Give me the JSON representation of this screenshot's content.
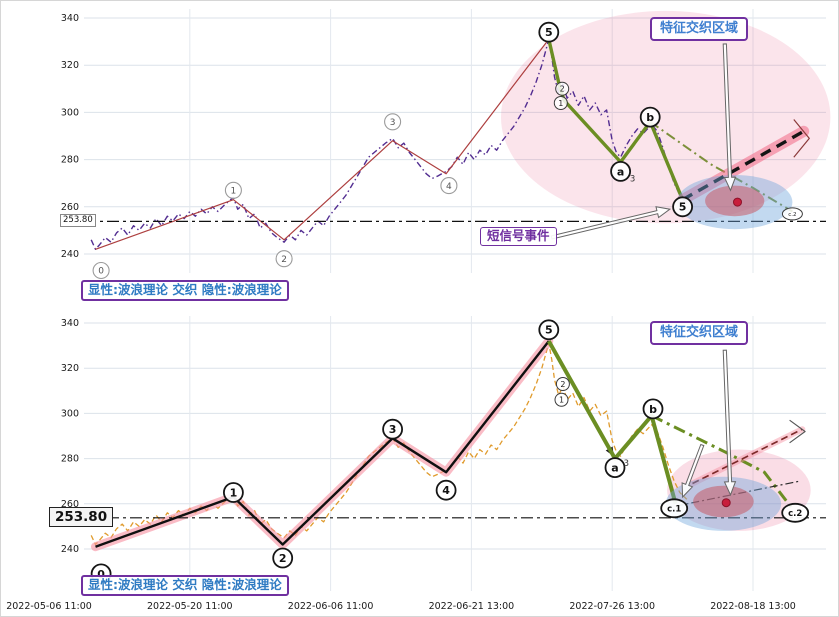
{
  "chart_data": {
    "type": "line",
    "title": "",
    "x_tick_labels": [
      "2022-05-06 11:00",
      "2022-05-20 11:00",
      "2022-06-06 11:00",
      "2022-06-21 13:00",
      "2022-07-26 13:00",
      "2022-08-18 13:00"
    ],
    "y_range": [
      240,
      340
    ],
    "grid": true,
    "shared": {
      "price": [
        [
          0.3,
          246
        ],
        [
          0.33,
          242
        ],
        [
          0.36,
          244
        ],
        [
          0.4,
          247
        ],
        [
          0.44,
          245
        ],
        [
          0.48,
          249
        ],
        [
          0.52,
          251
        ],
        [
          0.56,
          248
        ],
        [
          0.6,
          252
        ],
        [
          0.64,
          250
        ],
        [
          0.68,
          253
        ],
        [
          0.72,
          251
        ],
        [
          0.76,
          255
        ],
        [
          0.8,
          252
        ],
        [
          0.84,
          256
        ],
        [
          0.88,
          254
        ],
        [
          0.92,
          257
        ],
        [
          0.96,
          255
        ],
        [
          1.0,
          258
        ],
        [
          1.04,
          256
        ],
        [
          1.08,
          259
        ],
        [
          1.12,
          257
        ],
        [
          1.16,
          260
        ],
        [
          1.2,
          258
        ],
        [
          1.25,
          261
        ],
        [
          1.31,
          264
        ],
        [
          1.34,
          259
        ],
        [
          1.38,
          261
        ],
        [
          1.42,
          255
        ],
        [
          1.46,
          257
        ],
        [
          1.5,
          251
        ],
        [
          1.54,
          253
        ],
        [
          1.58,
          249
        ],
        [
          1.62,
          247
        ],
        [
          1.67,
          245
        ],
        [
          1.71,
          248
        ],
        [
          1.75,
          246
        ],
        [
          1.79,
          250
        ],
        [
          1.83,
          248
        ],
        [
          1.87,
          251
        ],
        [
          1.91,
          254
        ],
        [
          1.95,
          252
        ],
        [
          1.99,
          256
        ],
        [
          2.03,
          259
        ],
        [
          2.07,
          262
        ],
        [
          2.11,
          265
        ],
        [
          2.15,
          269
        ],
        [
          2.19,
          273
        ],
        [
          2.23,
          277
        ],
        [
          2.27,
          281
        ],
        [
          2.31,
          283
        ],
        [
          2.35,
          285
        ],
        [
          2.39,
          287
        ],
        [
          2.44,
          289
        ],
        [
          2.48,
          285
        ],
        [
          2.52,
          287
        ],
        [
          2.56,
          283
        ],
        [
          2.6,
          280
        ],
        [
          2.64,
          277
        ],
        [
          2.68,
          274
        ],
        [
          2.72,
          272
        ],
        [
          2.76,
          273
        ],
        [
          2.82,
          275
        ],
        [
          2.86,
          277
        ],
        [
          2.9,
          281
        ],
        [
          2.94,
          278
        ],
        [
          2.98,
          283
        ],
        [
          3.02,
          280
        ],
        [
          3.06,
          284
        ],
        [
          3.1,
          282
        ],
        [
          3.14,
          286
        ],
        [
          3.18,
          284
        ],
        [
          3.22,
          288
        ],
        [
          3.26,
          291
        ],
        [
          3.3,
          294
        ],
        [
          3.34,
          298
        ],
        [
          3.38,
          302
        ],
        [
          3.42,
          307
        ],
        [
          3.46,
          313
        ],
        [
          3.5,
          320
        ],
        [
          3.55,
          331
        ],
        [
          3.57,
          324
        ],
        [
          3.59,
          315
        ],
        [
          3.62,
          308
        ],
        [
          3.65,
          312
        ],
        [
          3.68,
          306
        ],
        [
          3.72,
          309
        ],
        [
          3.76,
          303
        ],
        [
          3.8,
          307
        ],
        [
          3.84,
          301
        ],
        [
          3.88,
          304
        ],
        [
          3.92,
          299
        ],
        [
          3.96,
          301
        ],
        [
          4.0,
          288
        ],
        [
          4.03,
          283
        ],
        [
          4.06,
          281
        ],
        [
          4.1,
          286
        ],
        [
          4.14,
          290
        ],
        [
          4.18,
          293
        ],
        [
          4.22,
          291
        ],
        [
          4.28,
          295
        ],
        [
          4.32,
          292
        ],
        [
          4.36,
          285
        ],
        [
          4.4,
          277
        ],
        [
          4.44,
          270
        ],
        [
          4.48,
          265
        ],
        [
          4.53,
          262
        ]
      ]
    },
    "panels": [
      {
        "name": "upper",
        "y_ticks": [
          240,
          260,
          280,
          300,
          320,
          340
        ],
        "ref_line": {
          "value": 253.8,
          "label": "253.80"
        },
        "annotations": {
          "region": "特征交织区域",
          "signal": "短信号事件",
          "legend": "显性:波浪理论 交织 隐性:波浪理论"
        },
        "ellipses": [
          {
            "t": 4.38,
            "v": 298,
            "rt": 1.17,
            "rv": 45,
            "fill": "rgba(231,84,128,0.16)",
            "layer": "under"
          },
          {
            "t": 4.87,
            "v": 262,
            "rt": 0.41,
            "rv": 11.5,
            "fill": "rgba(110,165,220,0.42)",
            "layer": "over"
          },
          {
            "t": 4.87,
            "v": 262.5,
            "rt": 0.21,
            "rv": 6.5,
            "fill": "rgba(200,80,90,0.5)",
            "layer": "over"
          }
        ],
        "dots": [
          {
            "t": 4.89,
            "v": 262,
            "r": 4,
            "fill": "#c81e3c"
          }
        ],
        "arrows": [
          {
            "from": [
              4.8,
              329
            ],
            "to": [
              4.84,
              267
            ]
          },
          {
            "from": [
              3.57,
              247
            ],
            "to": [
              4.41,
              259
            ]
          }
        ],
        "series": [
          {
            "name": "price-implicit",
            "points": "shared.price",
            "color": "#522d91",
            "width": 1.4,
            "dash": "6 3 1.5 3"
          },
          {
            "name": "impulse-0-5",
            "points": [
              [
                0.33,
                242
              ],
              [
                1.31,
                263
              ],
              [
                1.67,
                246
              ],
              [
                2.44,
                288
              ],
              [
                2.82,
                274
              ],
              [
                3.55,
                331
              ]
            ],
            "color": "#ad3f3f",
            "width": 1.2
          },
          {
            "name": "corrective-5ab5",
            "points": [
              [
                3.55,
                331
              ],
              [
                3.63,
                310
              ],
              [
                3.66,
                305
              ],
              [
                4.06,
                279
              ],
              [
                4.27,
                296
              ],
              [
                4.5,
                263
              ]
            ],
            "color": "#6b8e23",
            "width": 3.4
          },
          {
            "name": "corrective-forecast",
            "points": [
              [
                4.27,
                296
              ],
              [
                4.7,
                278
              ],
              [
                5.0,
                268
              ],
              [
                5.28,
                258
              ]
            ],
            "color": "#7c8f3a",
            "width": 2,
            "dash": "10 4 2 4"
          },
          {
            "name": "forecast-dashed",
            "points": [
              [
                4.5,
                263
              ],
              [
                5.36,
                292
              ]
            ],
            "color": "#141414",
            "width": 3.4,
            "dash": "11 7",
            "glow": {
              "color": "rgba(242,92,124,0.5)",
              "width": 11
            }
          },
          {
            "name": "bracket",
            "points": [
              [
                5.29,
                297
              ],
              [
                5.4,
                289
              ],
              [
                5.29,
                281
              ]
            ],
            "color": "#8b3a3a",
            "width": 1.2
          }
        ],
        "markers": [
          {
            "t": 0.37,
            "v": 233,
            "label": "0",
            "style": "g"
          },
          {
            "t": 1.31,
            "v": 267,
            "label": "1",
            "style": "g"
          },
          {
            "t": 1.67,
            "v": 238,
            "label": "2",
            "style": "g"
          },
          {
            "t": 2.44,
            "v": 296,
            "label": "3",
            "style": "g"
          },
          {
            "t": 2.84,
            "v": 269,
            "label": "4",
            "style": "g"
          },
          {
            "t": 3.55,
            "v": 334,
            "label": "5",
            "style": "k"
          },
          {
            "t": 3.645,
            "v": 310,
            "label": "2",
            "style": "s"
          },
          {
            "t": 3.635,
            "v": 304,
            "label": "1",
            "style": "s"
          },
          {
            "t": 4.06,
            "v": 275,
            "label": "a",
            "style": "k"
          },
          {
            "t": 4.145,
            "v": 272,
            "label": "3",
            "style": "t"
          },
          {
            "t": 4.27,
            "v": 298,
            "label": "b",
            "style": "k"
          },
          {
            "t": 4.5,
            "v": 260,
            "label": "5",
            "style": "k"
          },
          {
            "t": 5.28,
            "v": 257,
            "label": "c.2",
            "style": "s"
          }
        ]
      },
      {
        "name": "lower",
        "y_ticks": [
          240,
          260,
          280,
          300,
          320,
          340
        ],
        "ref_line": {
          "value": 253.8,
          "label": "253.80"
        },
        "annotations": {
          "region": "特征交织区域",
          "legend": "显性:波浪理论 交织 隐性:波浪理论"
        },
        "ellipses": [
          {
            "t": 4.9,
            "v": 266,
            "rt": 0.51,
            "rv": 18,
            "fill": "rgba(231,84,128,0.2)",
            "layer": "under"
          },
          {
            "t": 4.79,
            "v": 260,
            "rt": 0.41,
            "rv": 12,
            "fill": "rgba(110,165,220,0.42)",
            "layer": "over"
          },
          {
            "t": 4.79,
            "v": 261,
            "rt": 0.215,
            "rv": 7,
            "fill": "rgba(200,80,90,0.5)",
            "layer": "over"
          }
        ],
        "dots": [
          {
            "t": 4.81,
            "v": 260.5,
            "r": 4,
            "fill": "#c81e3c"
          }
        ],
        "arrows": [
          {
            "from": [
              4.8,
              328
            ],
            "to": [
              4.84,
              264
            ]
          },
          {
            "from": [
              4.64,
              286
            ],
            "to": [
              4.5,
              263
            ]
          }
        ],
        "series": [
          {
            "name": "price-explicit",
            "points": "shared.price",
            "color": "#e09b2d",
            "width": 1.3,
            "dash": "5 3"
          },
          {
            "name": "impulse-0-5",
            "points": [
              [
                0.33,
                241
              ],
              [
                1.31,
                263
              ],
              [
                1.66,
                242
              ],
              [
                2.44,
                289
              ],
              [
                2.82,
                274
              ],
              [
                3.55,
                332
              ]
            ],
            "color": "#101010",
            "width": 2.4,
            "glow": {
              "color": "rgba(247,143,160,0.6)",
              "width": 9
            }
          },
          {
            "name": "line-5-to-a",
            "points": [
              [
                3.55,
                332
              ],
              [
                4.01,
                281
              ]
            ],
            "color": "#222222",
            "width": 1,
            "arrow_end": true
          },
          {
            "name": "corrective-green",
            "points": [
              [
                3.55,
                332
              ],
              [
                4.02,
                280
              ],
              [
                4.28,
                299
              ],
              [
                4.45,
                260
              ]
            ],
            "color": "#6b8e23",
            "width": 4
          },
          {
            "name": "corrective-green-forecast",
            "points": [
              [
                4.28,
                299
              ],
              [
                4.8,
                283
              ],
              [
                5.08,
                274
              ],
              [
                5.29,
                257
              ]
            ],
            "color": "#6b8e23",
            "width": 3,
            "dash": "12 5 3 5"
          },
          {
            "name": "flat-dashdot",
            "points": [
              [
                4.45,
                259
              ],
              [
                5.33,
                270
              ]
            ],
            "color": "#2a2a2a",
            "width": 1.2,
            "dash": "8 3 2 3"
          },
          {
            "name": "forecast-dashed",
            "points": [
              [
                4.57,
                269
              ],
              [
                5.35,
                293
              ]
            ],
            "color": "#7d2a2a",
            "width": 1.6,
            "dash": "7 4",
            "glow": {
              "color": "rgba(247,143,160,0.45)",
              "width": 6
            }
          },
          {
            "name": "bracket",
            "points": [
              [
                5.26,
                297
              ],
              [
                5.37,
                292
              ],
              [
                5.26,
                287
              ]
            ],
            "color": "#555555",
            "width": 1.1
          }
        ],
        "markers": [
          {
            "t": 0.37,
            "v": 229,
            "label": "0",
            "style": "k"
          },
          {
            "t": 1.31,
            "v": 265,
            "label": "1",
            "style": "k"
          },
          {
            "t": 1.66,
            "v": 236,
            "label": "2",
            "style": "k"
          },
          {
            "t": 2.44,
            "v": 293,
            "label": "3",
            "style": "k"
          },
          {
            "t": 2.82,
            "v": 266,
            "label": "4",
            "style": "k"
          },
          {
            "t": 3.55,
            "v": 337,
            "label": "5",
            "style": "k"
          },
          {
            "t": 3.65,
            "v": 313,
            "label": "2",
            "style": "s"
          },
          {
            "t": 3.64,
            "v": 306,
            "label": "1",
            "style": "s"
          },
          {
            "t": 4.02,
            "v": 276,
            "label": "a",
            "style": "k"
          },
          {
            "t": 4.1,
            "v": 278,
            "label": "3",
            "style": "t"
          },
          {
            "t": 4.29,
            "v": 302,
            "label": "b",
            "style": "k"
          },
          {
            "t": 4.44,
            "v": 258,
            "label": "c.1",
            "style": "k"
          },
          {
            "t": 5.3,
            "v": 256,
            "label": "c.2",
            "style": "k"
          }
        ]
      }
    ]
  }
}
